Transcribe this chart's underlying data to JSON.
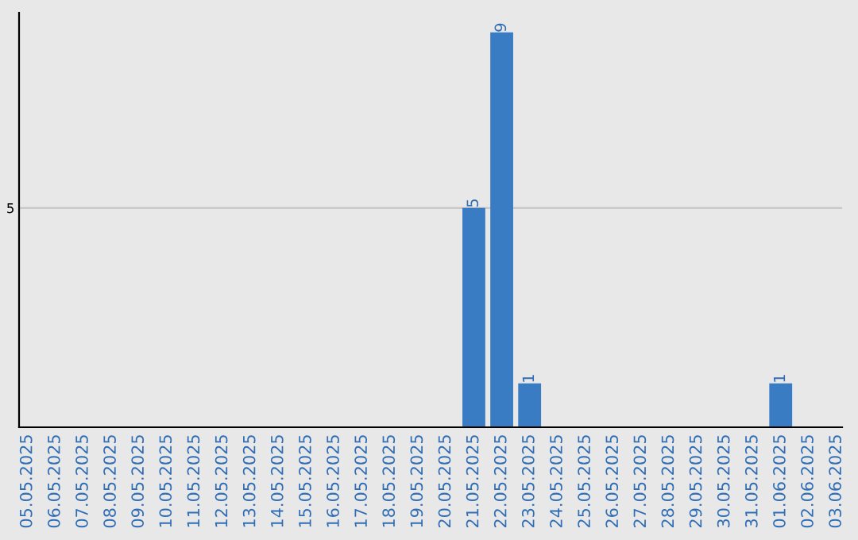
{
  "chart_data": {
    "type": "bar",
    "categories": [
      "05.05.2025",
      "06.05.2025",
      "07.05.2025",
      "08.05.2025",
      "09.05.2025",
      "10.05.2025",
      "11.05.2025",
      "12.05.2025",
      "13.05.2025",
      "14.05.2025",
      "15.05.2025",
      "16.05.2025",
      "17.05.2025",
      "18.05.2025",
      "19.05.2025",
      "20.05.2025",
      "21.05.2025",
      "22.05.2025",
      "23.05.2025",
      "24.05.2025",
      "25.05.2025",
      "26.05.2025",
      "27.05.2025",
      "28.05.2025",
      "29.05.2025",
      "30.05.2025",
      "31.05.2025",
      "01.06.2025",
      "02.06.2025",
      "03.06.2025"
    ],
    "values": [
      null,
      null,
      null,
      null,
      null,
      null,
      null,
      null,
      null,
      null,
      null,
      null,
      null,
      null,
      null,
      null,
      5,
      9,
      1,
      null,
      null,
      null,
      null,
      null,
      null,
      null,
      null,
      1,
      null,
      null
    ],
    "data_labels": true,
    "color": "#3a7cc3",
    "ylim": [
      0,
      9.45
    ],
    "yticks": [
      {
        "value": 0,
        "label": null
      },
      5
    ],
    "grid": "y"
  }
}
